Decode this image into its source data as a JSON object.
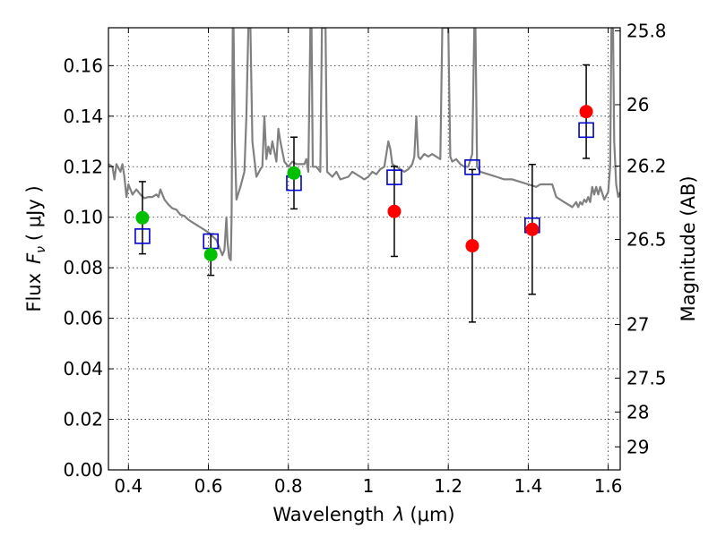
{
  "chart_data": {
    "type": "scatter",
    "xlabel_prefix": "Wavelength",
    "xlabel_symbol": "λ",
    "xlabel_unit": "(μm)",
    "ylabel_prefix": "Flux",
    "ylabel_symbol": "F",
    "ylabel_subscript": "ν",
    "ylabel_unit": "( μJy )",
    "y2label": "Magnitude (AB)",
    "xlim": [
      0.35,
      1.63
    ],
    "ylim": [
      0.0,
      0.175
    ],
    "grid": true,
    "x_ticks": [
      {
        "value": 0.4,
        "label": "0.4"
      },
      {
        "value": 0.6,
        "label": "0.6"
      },
      {
        "value": 0.8,
        "label": "0.8"
      },
      {
        "value": 1.0,
        "label": "1"
      },
      {
        "value": 1.2,
        "label": "1.2"
      },
      {
        "value": 1.4,
        "label": "1.4"
      },
      {
        "value": 1.6,
        "label": "1.6"
      }
    ],
    "y_ticks": [
      {
        "value": 0.0,
        "label": "0.00"
      },
      {
        "value": 0.02,
        "label": "0.02"
      },
      {
        "value": 0.04,
        "label": "0.04"
      },
      {
        "value": 0.06,
        "label": "0.06"
      },
      {
        "value": 0.08,
        "label": "0.08"
      },
      {
        "value": 0.1,
        "label": "0.10"
      },
      {
        "value": 0.12,
        "label": "0.12"
      },
      {
        "value": 0.14,
        "label": "0.14"
      },
      {
        "value": 0.16,
        "label": "0.16"
      }
    ],
    "y2_ticks": [
      {
        "mag": 25.8,
        "label": "25.8"
      },
      {
        "mag": 26.0,
        "label": "26"
      },
      {
        "mag": 26.2,
        "label": "26.2"
      },
      {
        "mag": 26.5,
        "label": "26.5"
      },
      {
        "mag": 27.0,
        "label": "27"
      },
      {
        "mag": 27.5,
        "label": "27.5"
      },
      {
        "mag": 28.0,
        "label": "28"
      },
      {
        "mag": 29.0,
        "label": "29"
      }
    ],
    "colors": {
      "green": "#00c000",
      "red": "#ff0000",
      "model_box": "#0000cc",
      "sed": "#808080",
      "errorbar": "#000000"
    },
    "observed": [
      {
        "x": 0.435,
        "y": 0.0998,
        "err": 0.0143,
        "color": "green"
      },
      {
        "x": 0.606,
        "y": 0.0852,
        "err": 0.0082,
        "color": "green"
      },
      {
        "x": 0.814,
        "y": 0.1175,
        "err": 0.0142,
        "color": "green"
      },
      {
        "x": 1.065,
        "y": 0.1023,
        "err": 0.0178,
        "color": "red"
      },
      {
        "x": 1.26,
        "y": 0.0887,
        "err": 0.0302,
        "color": "red"
      },
      {
        "x": 1.41,
        "y": 0.0952,
        "err": 0.0257,
        "color": "red"
      },
      {
        "x": 1.545,
        "y": 0.1418,
        "err": 0.0185,
        "color": "red"
      }
    ],
    "model_photometry": [
      {
        "x": 0.435,
        "y": 0.0925
      },
      {
        "x": 0.606,
        "y": 0.0905
      },
      {
        "x": 0.814,
        "y": 0.1135
      },
      {
        "x": 1.065,
        "y": 0.1158
      },
      {
        "x": 1.26,
        "y": 0.1198
      },
      {
        "x": 1.41,
        "y": 0.0968
      },
      {
        "x": 1.545,
        "y": 0.1345
      }
    ],
    "sed_model": [
      [
        0.35,
        0.121
      ],
      [
        0.36,
        0.12
      ],
      [
        0.365,
        0.115
      ],
      [
        0.37,
        0.121
      ],
      [
        0.38,
        0.118
      ],
      [
        0.385,
        0.121
      ],
      [
        0.39,
        0.116
      ],
      [
        0.395,
        0.108
      ],
      [
        0.4,
        0.113
      ],
      [
        0.41,
        0.109
      ],
      [
        0.42,
        0.111
      ],
      [
        0.43,
        0.109
      ],
      [
        0.44,
        0.1075
      ],
      [
        0.45,
        0.108
      ],
      [
        0.46,
        0.108
      ],
      [
        0.47,
        0.109
      ],
      [
        0.475,
        0.108
      ],
      [
        0.48,
        0.111
      ],
      [
        0.49,
        0.107
      ],
      [
        0.5,
        0.105
      ],
      [
        0.51,
        0.1035
      ],
      [
        0.52,
        0.103
      ],
      [
        0.53,
        0.101
      ],
      [
        0.54,
        0.1005
      ],
      [
        0.55,
        0.099
      ],
      [
        0.56,
        0.098
      ],
      [
        0.57,
        0.097
      ],
      [
        0.58,
        0.096
      ],
      [
        0.59,
        0.095
      ],
      [
        0.6,
        0.094
      ],
      [
        0.61,
        0.0925
      ],
      [
        0.62,
        0.091
      ],
      [
        0.63,
        0.087
      ],
      [
        0.635,
        0.085
      ],
      [
        0.64,
        0.087
      ],
      [
        0.645,
        0.1
      ],
      [
        0.648,
        0.09
      ],
      [
        0.652,
        0.084
      ],
      [
        0.656,
        0.083
      ],
      [
        0.658,
        0.1
      ],
      [
        0.661,
        0.175
      ],
      [
        0.663,
        0.175
      ],
      [
        0.666,
        0.13
      ],
      [
        0.67,
        0.107
      ],
      [
        0.68,
        0.112
      ],
      [
        0.69,
        0.118
      ],
      [
        0.695,
        0.14
      ],
      [
        0.7,
        0.175
      ],
      [
        0.705,
        0.175
      ],
      [
        0.71,
        0.13
      ],
      [
        0.72,
        0.116
      ],
      [
        0.73,
        0.119
      ],
      [
        0.735,
        0.12
      ],
      [
        0.74,
        0.14
      ],
      [
        0.745,
        0.123
      ],
      [
        0.75,
        0.128
      ],
      [
        0.755,
        0.125
      ],
      [
        0.76,
        0.13
      ],
      [
        0.77,
        0.122
      ],
      [
        0.775,
        0.135
      ],
      [
        0.78,
        0.13
      ],
      [
        0.79,
        0.122
      ],
      [
        0.8,
        0.12
      ],
      [
        0.81,
        0.122
      ],
      [
        0.82,
        0.121
      ],
      [
        0.83,
        0.121
      ],
      [
        0.84,
        0.121
      ],
      [
        0.845,
        0.123
      ],
      [
        0.85,
        0.118
      ],
      [
        0.855,
        0.175
      ],
      [
        0.858,
        0.175
      ],
      [
        0.861,
        0.12
      ],
      [
        0.87,
        0.12
      ],
      [
        0.88,
        0.118
      ],
      [
        0.884,
        0.175
      ],
      [
        0.888,
        0.175
      ],
      [
        0.893,
        0.175
      ],
      [
        0.897,
        0.118
      ],
      [
        0.91,
        0.116
      ],
      [
        0.92,
        0.118
      ],
      [
        0.93,
        0.115
      ],
      [
        0.95,
        0.116
      ],
      [
        0.96,
        0.118
      ],
      [
        0.98,
        0.116
      ],
      [
        0.99,
        0.115
      ],
      [
        1.0,
        0.116
      ],
      [
        1.01,
        0.118
      ],
      [
        1.02,
        0.117
      ],
      [
        1.03,
        0.119
      ],
      [
        1.04,
        0.12
      ],
      [
        1.05,
        0.13
      ],
      [
        1.055,
        0.127
      ],
      [
        1.06,
        0.121
      ],
      [
        1.07,
        0.12
      ],
      [
        1.08,
        0.119
      ],
      [
        1.09,
        0.118
      ],
      [
        1.1,
        0.119
      ],
      [
        1.11,
        0.121
      ],
      [
        1.115,
        0.124
      ],
      [
        1.12,
        0.14
      ],
      [
        1.125,
        0.124
      ],
      [
        1.13,
        0.123
      ],
      [
        1.14,
        0.125
      ],
      [
        1.15,
        0.124
      ],
      [
        1.16,
        0.125
      ],
      [
        1.17,
        0.124
      ],
      [
        1.18,
        0.123
      ],
      [
        1.185,
        0.175
      ],
      [
        1.19,
        0.175
      ],
      [
        1.195,
        0.175
      ],
      [
        1.2,
        0.175
      ],
      [
        1.205,
        0.124
      ],
      [
        1.21,
        0.122
      ],
      [
        1.22,
        0.123
      ],
      [
        1.23,
        0.121
      ],
      [
        1.24,
        0.12
      ],
      [
        1.25,
        0.12
      ],
      [
        1.26,
        0.125
      ],
      [
        1.265,
        0.175
      ],
      [
        1.268,
        0.175
      ],
      [
        1.272,
        0.12
      ],
      [
        1.28,
        0.118
      ],
      [
        1.3,
        0.117
      ],
      [
        1.32,
        0.116
      ],
      [
        1.34,
        0.115
      ],
      [
        1.36,
        0.115
      ],
      [
        1.38,
        0.114
      ],
      [
        1.4,
        0.113
      ],
      [
        1.42,
        0.112
      ],
      [
        1.43,
        0.113
      ],
      [
        1.45,
        0.113
      ],
      [
        1.46,
        0.113
      ],
      [
        1.47,
        0.108
      ],
      [
        1.48,
        0.107
      ],
      [
        1.49,
        0.106
      ],
      [
        1.5,
        0.105
      ],
      [
        1.51,
        0.104
      ],
      [
        1.52,
        0.106
      ],
      [
        1.525,
        0.104
      ],
      [
        1.53,
        0.106
      ],
      [
        1.535,
        0.105
      ],
      [
        1.54,
        0.107
      ],
      [
        1.545,
        0.106
      ],
      [
        1.55,
        0.108
      ],
      [
        1.555,
        0.106
      ],
      [
        1.56,
        0.112
      ],
      [
        1.565,
        0.109
      ],
      [
        1.57,
        0.112
      ],
      [
        1.575,
        0.109
      ],
      [
        1.58,
        0.112
      ],
      [
        1.59,
        0.107
      ],
      [
        1.6,
        0.11
      ],
      [
        1.605,
        0.12
      ],
      [
        1.608,
        0.175
      ],
      [
        1.612,
        0.175
      ],
      [
        1.615,
        0.13
      ],
      [
        1.62,
        0.113
      ],
      [
        1.625,
        0.108
      ],
      [
        1.63,
        0.11
      ]
    ]
  }
}
